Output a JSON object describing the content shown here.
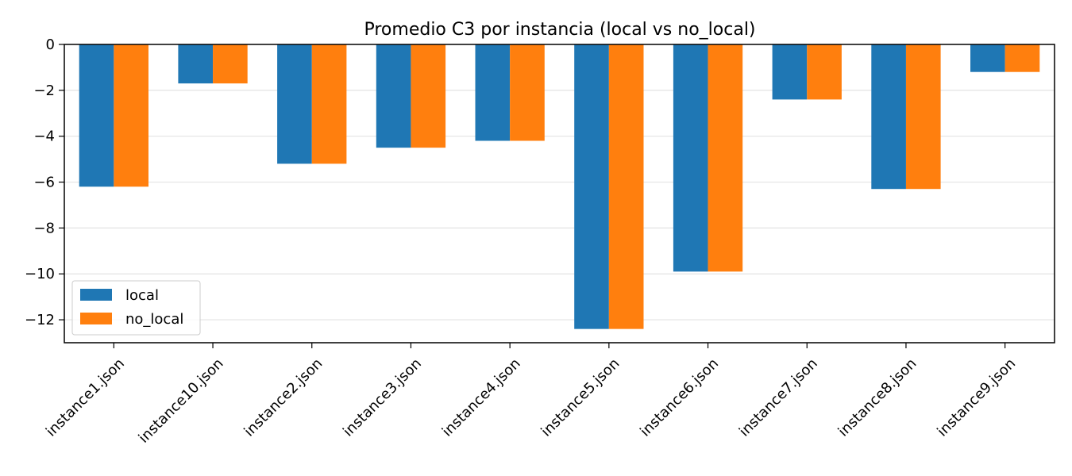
{
  "chart_data": {
    "type": "bar",
    "title": "Promedio C3 por instancia (local vs no_local)",
    "xlabel": "",
    "ylabel": "",
    "categories": [
      "instance1.json",
      "instance10.json",
      "instance2.json",
      "instance3.json",
      "instance4.json",
      "instance5.json",
      "instance6.json",
      "instance7.json",
      "instance8.json",
      "instance9.json"
    ],
    "series": [
      {
        "name": "local",
        "color": "#1f77b4",
        "values": [
          -6.2,
          -1.7,
          -5.2,
          -4.5,
          -4.2,
          -12.4,
          -9.9,
          -2.4,
          -6.3,
          -1.2
        ]
      },
      {
        "name": "no_local",
        "color": "#ff7f0e",
        "values": [
          -6.2,
          -1.7,
          -5.2,
          -4.5,
          -4.2,
          -12.4,
          -9.9,
          -2.4,
          -6.3,
          -1.2
        ]
      }
    ],
    "ylim": [
      -13,
      0
    ],
    "yticks": [
      0,
      -2,
      -4,
      -6,
      -8,
      -10,
      -12
    ],
    "ytick_labels": [
      "0",
      "−2",
      "−4",
      "−6",
      "−8",
      "−10",
      "−12"
    ],
    "grid": {
      "y": true,
      "x": false
    },
    "legend": {
      "placement": "lower-left"
    }
  }
}
